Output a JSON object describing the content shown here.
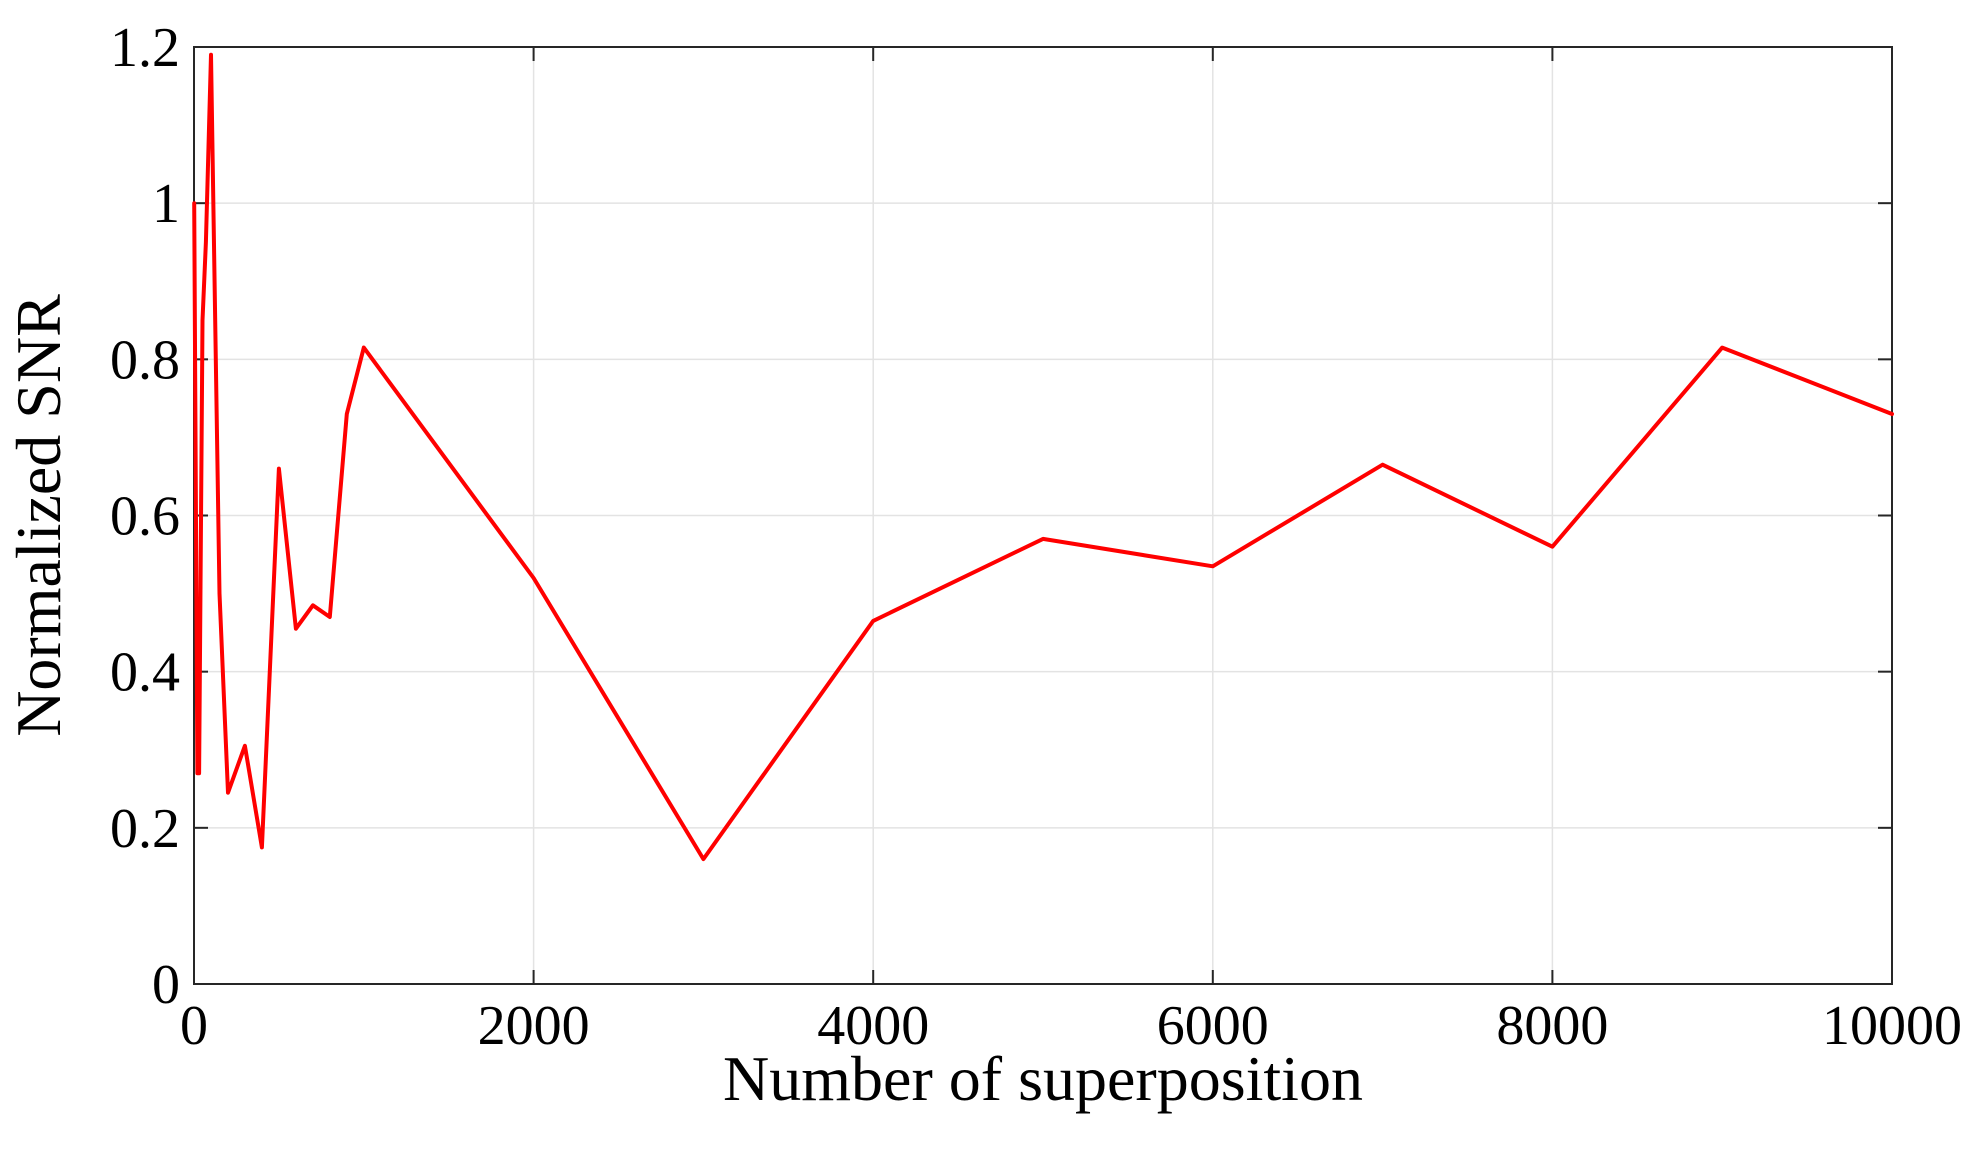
{
  "chart_data": {
    "type": "line",
    "title": "",
    "xlabel": "Number of superposition",
    "ylabel": "Normalized SNR",
    "xlim": [
      0,
      10000
    ],
    "ylim": [
      0,
      1.2
    ],
    "xticks": [
      0,
      2000,
      4000,
      6000,
      8000,
      10000
    ],
    "xtick_labels": [
      "0",
      "2000",
      "4000",
      "6000",
      "8000",
      "10000"
    ],
    "yticks": [
      0,
      0.2,
      0.4,
      0.6,
      0.8,
      1,
      1.2
    ],
    "ytick_labels": [
      "0",
      "0.2",
      "0.4",
      "0.6",
      "0.8",
      "1",
      "1.2"
    ],
    "grid": true,
    "legend": "none",
    "colors": {
      "line": "#ff0000",
      "grid": "#e3e3e3",
      "axis": "#262626"
    },
    "series": [
      {
        "x": [
          1,
          20,
          30,
          50,
          70,
          100,
          150,
          200,
          300,
          400,
          500,
          600,
          700,
          800,
          900,
          1000,
          2000,
          3000,
          4000,
          5000,
          6000,
          7000,
          8000,
          9000,
          10000
        ],
        "y": [
          1.0,
          0.27,
          0.27,
          0.85,
          0.95,
          1.19,
          0.5,
          0.245,
          0.305,
          0.175,
          0.66,
          0.455,
          0.485,
          0.47,
          0.73,
          0.815,
          0.52,
          0.16,
          0.465,
          0.57,
          0.535,
          0.665,
          0.56,
          0.815,
          0.73
        ]
      }
    ]
  }
}
